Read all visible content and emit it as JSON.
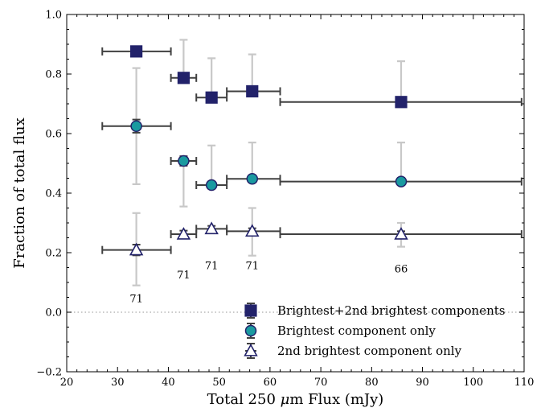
{
  "chart_data": {
    "type": "scatter",
    "title": "",
    "xlabel_parts": [
      "Total 250 ",
      "μ",
      "m Flux (mJy)"
    ],
    "ylabel": "Fraction of total flux",
    "xlim": [
      20,
      110
    ],
    "ylim": [
      -0.2,
      1.0
    ],
    "xticks": [
      20,
      30,
      40,
      50,
      60,
      70,
      80,
      90,
      100,
      110
    ],
    "xtick_labels": [
      "20",
      "30",
      "40",
      "50",
      "60",
      "70",
      "80",
      "90",
      "100",
      "110"
    ],
    "yticks": [
      -0.2,
      0.0,
      0.2,
      0.4,
      0.6,
      0.8,
      1.0
    ],
    "ytick_labels": [
      "−0.2",
      "0.0",
      "0.2",
      "0.4",
      "0.6",
      "0.8",
      "1.0"
    ],
    "reference_line_y": 0.0,
    "legend_position": "lower-right",
    "series": [
      {
        "name": "Brightest+2nd brightest components",
        "marker": "square",
        "fill": "#22226a",
        "stroke": "#22226a",
        "x": [
          33.7,
          43.0,
          48.5,
          56.5,
          85.8
        ],
        "xlow": [
          27.0,
          40.5,
          45.5,
          51.5,
          62.0
        ],
        "xhigh": [
          40.5,
          45.5,
          51.5,
          62.0,
          109.5
        ],
        "y": [
          0.876,
          0.787,
          0.721,
          0.742,
          0.706
        ],
        "yerr_small": [
          0.0,
          0.01,
          0.01,
          0.01,
          0.01
        ],
        "ylow_scatter": [
          0.0,
          0.0,
          0.0,
          0.0,
          0.0
        ],
        "yhigh_scatter": [
          0.0,
          0.915,
          0.853,
          0.866,
          0.843
        ]
      },
      {
        "name": "Brightest component only",
        "marker": "circle",
        "fill": "#1a9aa0",
        "stroke": "#22226a",
        "x": [
          33.7,
          43.0,
          48.5,
          56.5,
          85.8
        ],
        "xlow": [
          27.0,
          40.5,
          45.5,
          51.5,
          62.0
        ],
        "xhigh": [
          40.5,
          45.5,
          51.5,
          62.0,
          109.5
        ],
        "y": [
          0.625,
          0.508,
          0.427,
          0.448,
          0.439
        ],
        "yerr_small": [
          0.022,
          0.016,
          0.012,
          0.012,
          0.012
        ],
        "ylow_scatter": [
          0.43,
          0.355,
          0.0,
          0.0,
          0.0
        ],
        "yhigh_scatter": [
          0.82,
          0.0,
          0.56,
          0.57,
          0.57
        ]
      },
      {
        "name": "2nd brightest component only",
        "marker": "triangle",
        "fill": "#ffffff",
        "stroke": "#22226a",
        "x": [
          33.7,
          43.0,
          48.5,
          56.5,
          85.8
        ],
        "xlow": [
          27.0,
          40.5,
          45.5,
          51.5,
          62.0
        ],
        "xhigh": [
          40.5,
          45.5,
          51.5,
          62.0,
          109.5
        ],
        "y": [
          0.209,
          0.262,
          0.28,
          0.272,
          0.262
        ],
        "yerr_small": [
          0.018,
          0.012,
          0.01,
          0.01,
          0.01
        ],
        "ylow_scatter": [
          0.09,
          0.0,
          0.0,
          0.19,
          0.22
        ],
        "yhigh_scatter": [
          0.333,
          0.0,
          0.0,
          0.35,
          0.3
        ]
      }
    ],
    "counts": [
      {
        "x": 33.7,
        "text": "71",
        "y_pos": 0.045
      },
      {
        "x": 43.0,
        "text": "71",
        "y_pos": 0.125
      },
      {
        "x": 48.5,
        "text": "71",
        "y_pos": 0.155
      },
      {
        "x": 56.5,
        "text": "71",
        "y_pos": 0.155
      },
      {
        "x": 85.8,
        "text": "66",
        "y_pos": 0.145
      }
    ],
    "colors": {
      "errorbar_x": "#404040",
      "errorbar_scatter": "#c8c8c8",
      "reference_line": "#aaaaaa"
    }
  }
}
